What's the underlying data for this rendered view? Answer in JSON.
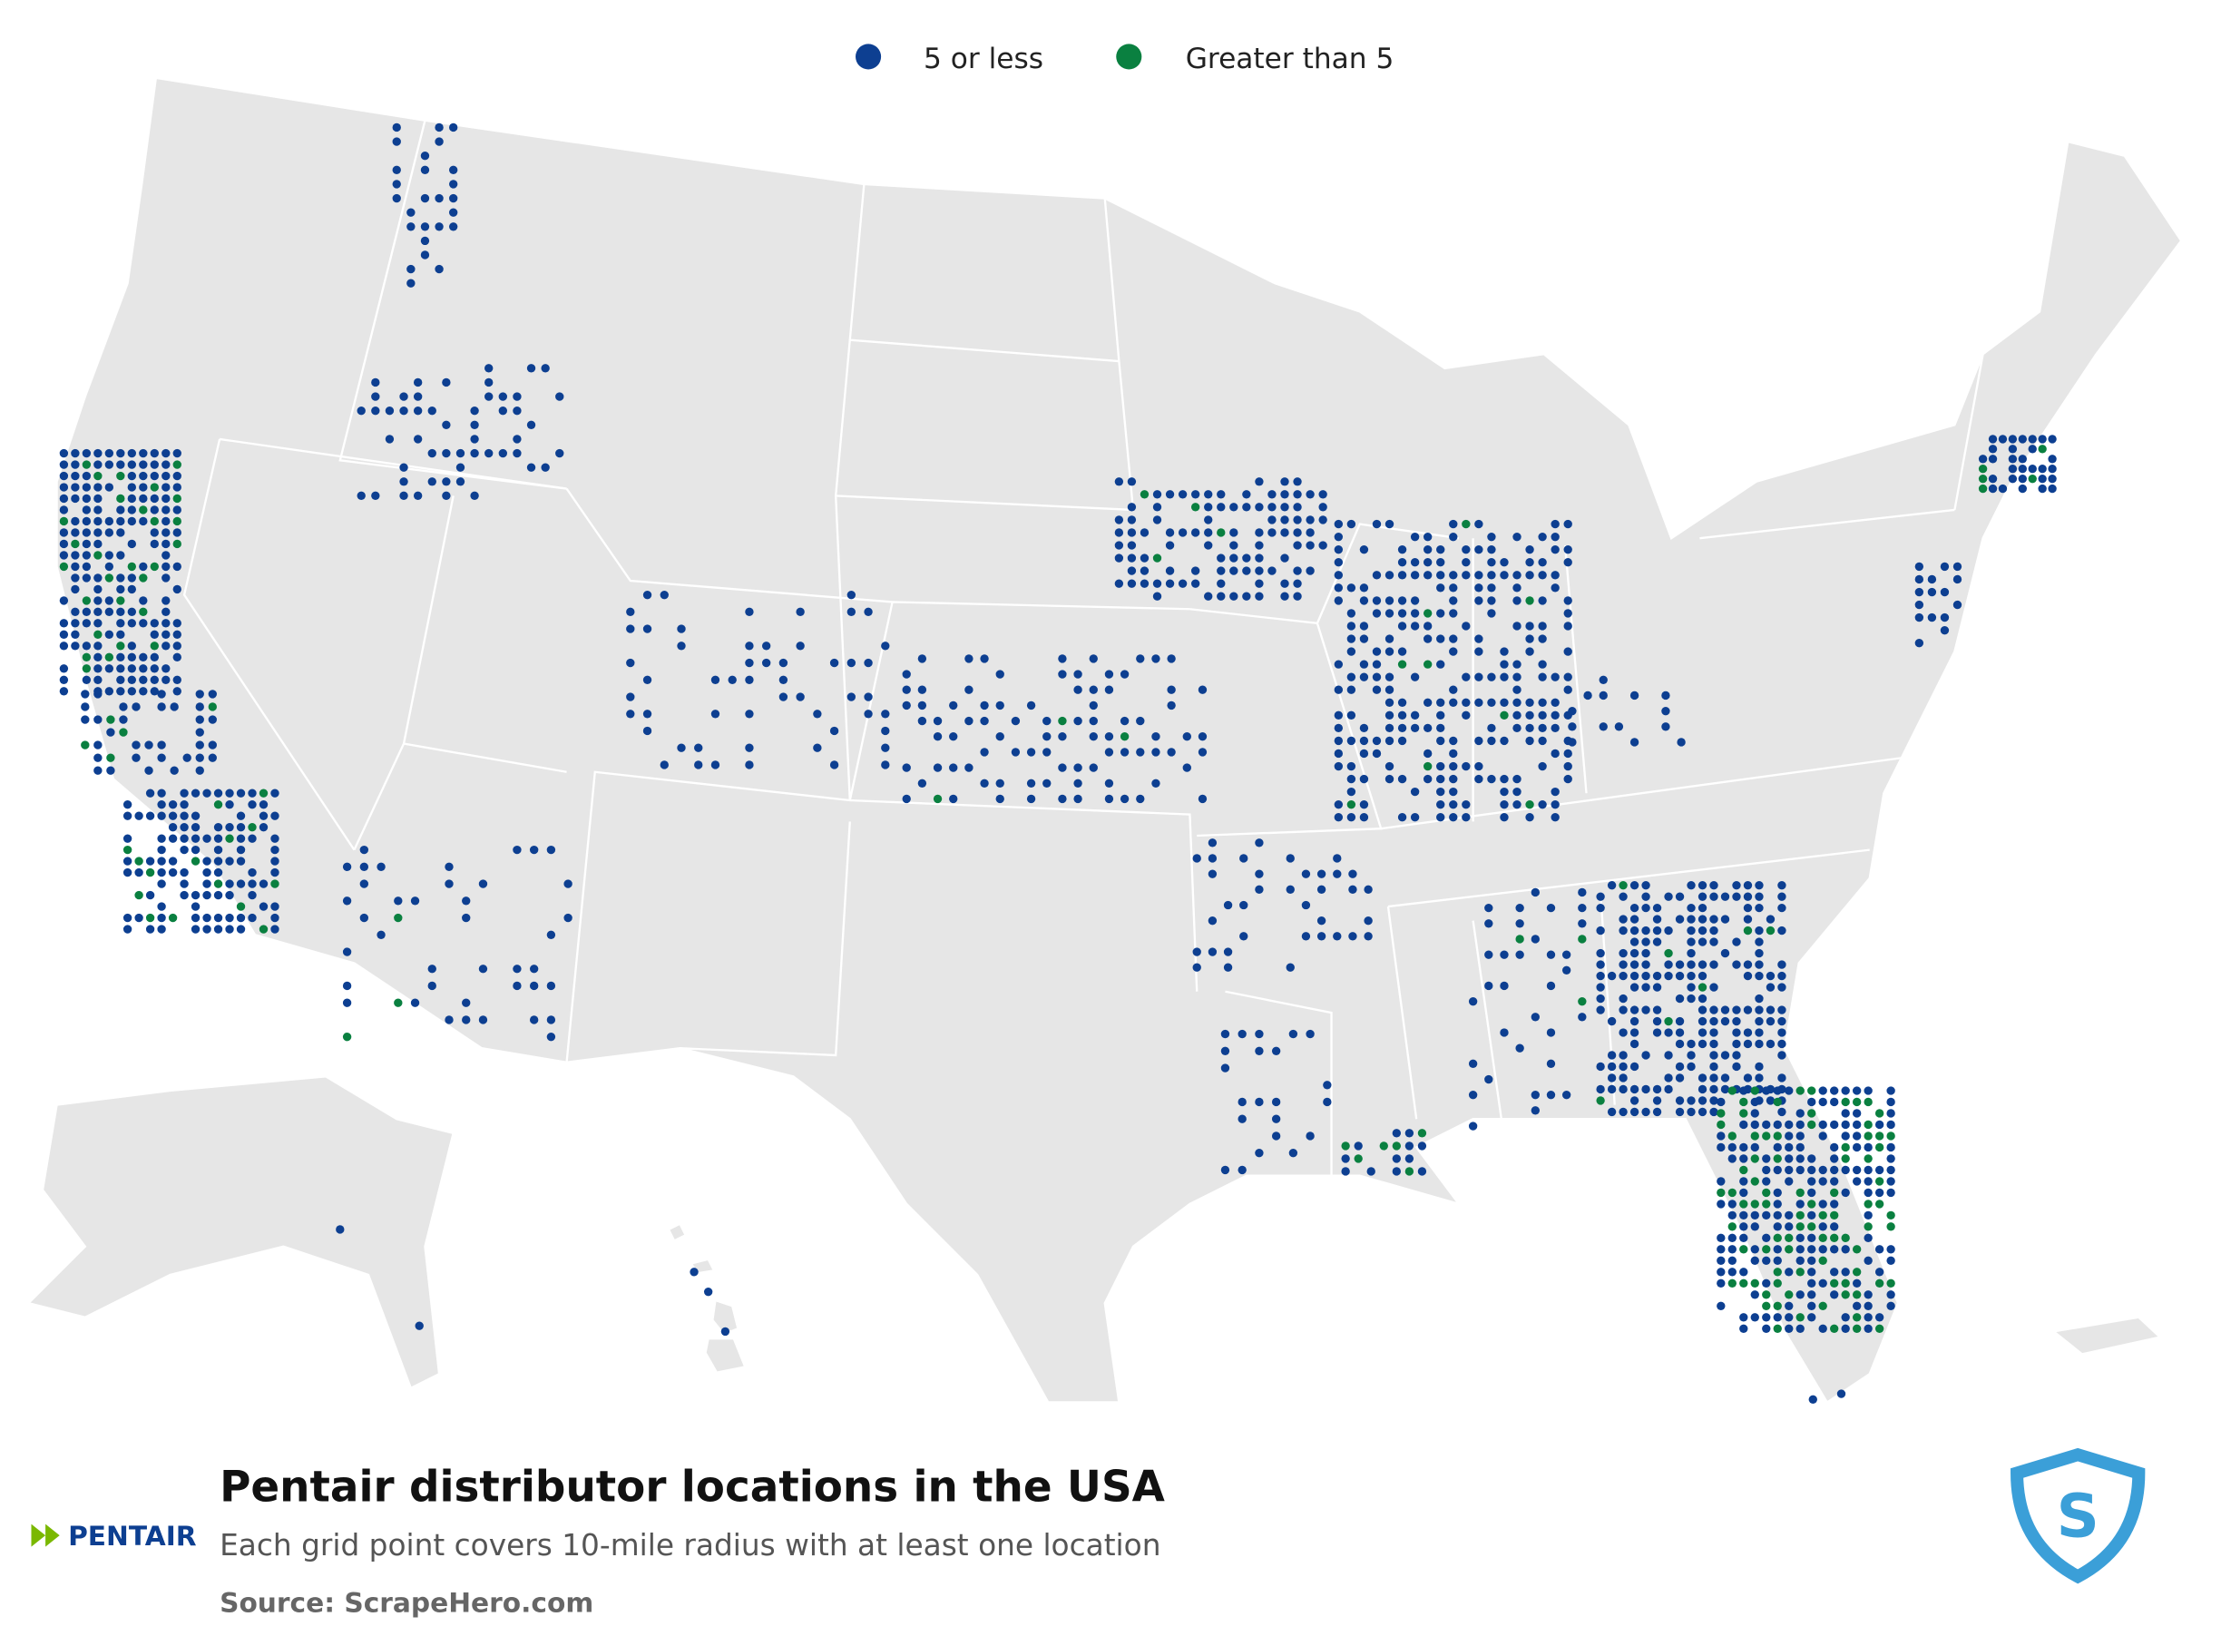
{
  "legend": {
    "items": [
      {
        "label": "5 or less",
        "color": "#0d3f91"
      },
      {
        "label": "Greater than 5",
        "color": "#0a8040"
      }
    ]
  },
  "footer": {
    "title": "Pentair distributor locations in the USA",
    "subtitle": "Each grid point covers 10-mile radius with at least one location",
    "source": "Source: ScrapeHero.com"
  },
  "logo": {
    "text": "PENTAIR"
  }
}
